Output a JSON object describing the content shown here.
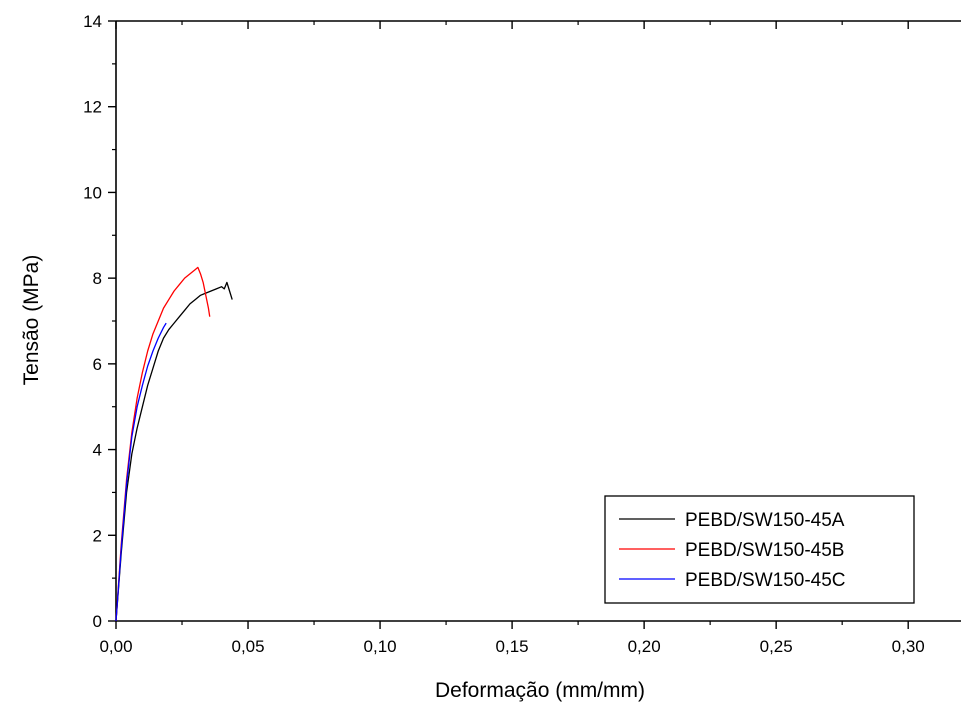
{
  "chart_data": {
    "type": "line",
    "title": "",
    "xlabel": "Deformação (mm/mm)",
    "ylabel": "Tensão (MPa)",
    "xlim": [
      0,
      0.32
    ],
    "ylim": [
      0,
      14
    ],
    "x_ticks": [
      0,
      0.05,
      0.1,
      0.15,
      0.2,
      0.25,
      0.3
    ],
    "x_tick_labels": [
      "0,00",
      "0,05",
      "0,10",
      "0,15",
      "0,20",
      "0,25",
      "0,30"
    ],
    "y_ticks": [
      0,
      2,
      4,
      6,
      8,
      10,
      12,
      14
    ],
    "y_tick_labels": [
      "0",
      "2",
      "4",
      "6",
      "8",
      "10",
      "12",
      "14"
    ],
    "grid": false,
    "legend_position": "bottom-right",
    "series": [
      {
        "name": "PEBD/SW150-45A",
        "color": "#000000",
        "points": [
          [
            0,
            0
          ],
          [
            0.002,
            1.6
          ],
          [
            0.004,
            3.0
          ],
          [
            0.006,
            3.9
          ],
          [
            0.008,
            4.5
          ],
          [
            0.01,
            5.0
          ],
          [
            0.012,
            5.5
          ],
          [
            0.014,
            5.9
          ],
          [
            0.016,
            6.3
          ],
          [
            0.018,
            6.6
          ],
          [
            0.02,
            6.8
          ],
          [
            0.022,
            6.95
          ],
          [
            0.024,
            7.1
          ],
          [
            0.026,
            7.25
          ],
          [
            0.028,
            7.4
          ],
          [
            0.03,
            7.5
          ],
          [
            0.032,
            7.6
          ],
          [
            0.034,
            7.65
          ],
          [
            0.036,
            7.7
          ],
          [
            0.038,
            7.75
          ],
          [
            0.04,
            7.8
          ],
          [
            0.041,
            7.75
          ],
          [
            0.042,
            7.9
          ],
          [
            0.043,
            7.7
          ],
          [
            0.044,
            7.5
          ]
        ]
      },
      {
        "name": "PEBD/SW150-45B",
        "color": "#ff0000",
        "points": [
          [
            0,
            0
          ],
          [
            0.002,
            1.8
          ],
          [
            0.004,
            3.3
          ],
          [
            0.006,
            4.4
          ],
          [
            0.008,
            5.2
          ],
          [
            0.01,
            5.8
          ],
          [
            0.012,
            6.3
          ],
          [
            0.014,
            6.7
          ],
          [
            0.016,
            7.0
          ],
          [
            0.018,
            7.3
          ],
          [
            0.02,
            7.5
          ],
          [
            0.022,
            7.7
          ],
          [
            0.024,
            7.85
          ],
          [
            0.026,
            8.0
          ],
          [
            0.028,
            8.1
          ],
          [
            0.03,
            8.2
          ],
          [
            0.031,
            8.25
          ],
          [
            0.032,
            8.1
          ],
          [
            0.033,
            7.9
          ],
          [
            0.034,
            7.6
          ],
          [
            0.035,
            7.3
          ],
          [
            0.0355,
            7.1
          ]
        ]
      },
      {
        "name": "PEBD/SW150-45C",
        "color": "#0000ff",
        "points": [
          [
            0,
            0
          ],
          [
            0.002,
            1.7
          ],
          [
            0.004,
            3.2
          ],
          [
            0.006,
            4.3
          ],
          [
            0.008,
            5.0
          ],
          [
            0.01,
            5.5
          ],
          [
            0.012,
            5.95
          ],
          [
            0.014,
            6.3
          ],
          [
            0.016,
            6.6
          ],
          [
            0.018,
            6.85
          ],
          [
            0.019,
            6.95
          ]
        ]
      }
    ]
  }
}
